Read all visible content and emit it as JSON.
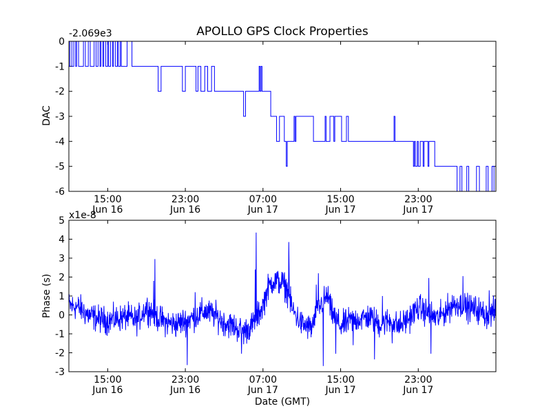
{
  "chart_data": [
    {
      "type": "line",
      "title": "APOLLO GPS Clock Properties",
      "ylabel": "DAC",
      "y_offset_label": "-2.069e3",
      "ylim": [
        -6,
        0
      ],
      "yticks": [
        0,
        -1,
        -2,
        -3,
        -4,
        -5,
        -6
      ],
      "ytick_labels": [
        "0",
        "-1",
        "-2",
        "-3",
        "-4",
        "-5",
        "-6"
      ],
      "x_range_hours": [
        0,
        44
      ],
      "xticks_hours": [
        4,
        12,
        20,
        28,
        36
      ],
      "xtick_labels": [
        {
          "time": "15:00",
          "date": "Jun 16"
        },
        {
          "time": "23:00",
          "date": "Jun 16"
        },
        {
          "time": "07:00",
          "date": "Jun 17"
        },
        {
          "time": "15:00",
          "date": "Jun 17"
        },
        {
          "time": "23:00",
          "date": "Jun 17"
        }
      ],
      "line_color": "#0000ff",
      "series": [
        {
          "name": "DAC",
          "steps": [
            [
              0.0,
              -1
            ],
            [
              0.1,
              0
            ],
            [
              0.3,
              -1
            ],
            [
              0.5,
              0
            ],
            [
              0.7,
              -1
            ],
            [
              0.8,
              0
            ],
            [
              1.0,
              -1
            ],
            [
              1.5,
              0
            ],
            [
              1.7,
              -1
            ],
            [
              2.0,
              0
            ],
            [
              2.2,
              -1
            ],
            [
              2.6,
              0
            ],
            [
              2.8,
              -1
            ],
            [
              3.0,
              0
            ],
            [
              3.2,
              -1
            ],
            [
              3.3,
              0
            ],
            [
              3.5,
              -1
            ],
            [
              3.6,
              0
            ],
            [
              3.8,
              -1
            ],
            [
              4.0,
              0
            ],
            [
              4.1,
              -1
            ],
            [
              4.3,
              0
            ],
            [
              4.5,
              -1
            ],
            [
              4.6,
              0
            ],
            [
              4.8,
              -1
            ],
            [
              5.0,
              0
            ],
            [
              5.1,
              -1
            ],
            [
              5.3,
              0
            ],
            [
              5.4,
              -1
            ],
            [
              6.0,
              0
            ],
            [
              6.5,
              -1
            ],
            [
              9.0,
              -1
            ],
            [
              9.2,
              -2
            ],
            [
              9.5,
              -1
            ],
            [
              11.5,
              -1
            ],
            [
              11.7,
              -2
            ],
            [
              12.0,
              -1
            ],
            [
              13.0,
              -1
            ],
            [
              13.1,
              -2
            ],
            [
              13.3,
              -1
            ],
            [
              13.5,
              -1
            ],
            [
              13.6,
              -2
            ],
            [
              14.0,
              -1
            ],
            [
              14.3,
              -2
            ],
            [
              14.7,
              -1
            ],
            [
              15.0,
              -2
            ],
            [
              17.8,
              -2
            ],
            [
              18.0,
              -3
            ],
            [
              18.2,
              -2
            ],
            [
              19.6,
              -1
            ],
            [
              19.7,
              -2
            ],
            [
              19.8,
              -1
            ],
            [
              19.9,
              -2
            ],
            [
              20.8,
              -3
            ],
            [
              21.4,
              -4
            ],
            [
              21.7,
              -3
            ],
            [
              22.2,
              -4
            ],
            [
              22.4,
              -5
            ],
            [
              22.5,
              -4
            ],
            [
              23.2,
              -3
            ],
            [
              23.3,
              -4
            ],
            [
              23.4,
              -3
            ],
            [
              25.2,
              -4
            ],
            [
              26.4,
              -3
            ],
            [
              26.5,
              -4
            ],
            [
              26.9,
              -3
            ],
            [
              27.3,
              -4
            ],
            [
              27.4,
              -3
            ],
            [
              28.0,
              -3
            ],
            [
              28.1,
              -4
            ],
            [
              28.4,
              -4
            ],
            [
              28.6,
              -3
            ],
            [
              28.8,
              -4
            ],
            [
              33.5,
              -3
            ],
            [
              33.6,
              -4
            ],
            [
              35.5,
              -5
            ],
            [
              35.6,
              -4
            ],
            [
              35.7,
              -5
            ],
            [
              35.9,
              -4
            ],
            [
              36.0,
              -5
            ],
            [
              36.2,
              -4
            ],
            [
              36.5,
              -5
            ],
            [
              36.6,
              -4
            ],
            [
              37.0,
              -5
            ],
            [
              37.1,
              -4
            ],
            [
              37.5,
              -4
            ],
            [
              37.7,
              -5
            ],
            [
              40.0,
              -6
            ],
            [
              40.3,
              -5
            ],
            [
              40.5,
              -6
            ],
            [
              41.0,
              -5
            ],
            [
              41.2,
              -6
            ],
            [
              42.0,
              -5
            ],
            [
              42.3,
              -6
            ],
            [
              43.0,
              -5
            ],
            [
              43.2,
              -6
            ],
            [
              43.6,
              -5
            ],
            [
              43.8,
              -6
            ],
            [
              44.0,
              -6
            ]
          ]
        }
      ]
    },
    {
      "type": "line",
      "xlabel": "Date (GMT)",
      "ylabel": "Phase (s)",
      "y_offset_label": "x1e-8",
      "ylim": [
        -3,
        5
      ],
      "yticks": [
        5,
        4,
        3,
        2,
        1,
        0,
        -1,
        -2,
        -3
      ],
      "ytick_labels": [
        "5",
        "4",
        "3",
        "2",
        "1",
        "0",
        "-1",
        "-2",
        "-3"
      ],
      "x_range_hours": [
        0,
        44
      ],
      "xticks_hours": [
        4,
        12,
        20,
        28,
        36
      ],
      "xtick_labels": [
        {
          "time": "15:00",
          "date": "Jun 16"
        },
        {
          "time": "23:00",
          "date": "Jun 16"
        },
        {
          "time": "07:00",
          "date": "Jun 17"
        },
        {
          "time": "15:00",
          "date": "Jun 17"
        },
        {
          "time": "23:00",
          "date": "Jun 17"
        }
      ],
      "line_color": "#0000ff",
      "series": [
        {
          "name": "Phase",
          "baseline": [
            [
              0.0,
              0.5
            ],
            [
              1.0,
              0.4
            ],
            [
              2.0,
              0.0
            ],
            [
              3.0,
              -0.2
            ],
            [
              4.0,
              -0.3
            ],
            [
              5.0,
              -0.2
            ],
            [
              6.0,
              -0.1
            ],
            [
              7.0,
              -0.3
            ],
            [
              8.0,
              0.4
            ],
            [
              9.0,
              -0.1
            ],
            [
              10.0,
              -0.4
            ],
            [
              11.0,
              -0.5
            ],
            [
              12.0,
              -0.3
            ],
            [
              13.0,
              -0.1
            ],
            [
              14.0,
              0.2
            ],
            [
              15.0,
              0.0
            ],
            [
              16.0,
              -0.4
            ],
            [
              17.0,
              -0.6
            ],
            [
              18.0,
              -0.9
            ],
            [
              19.0,
              -0.5
            ],
            [
              20.0,
              0.5
            ],
            [
              20.5,
              1.4
            ],
            [
              21.0,
              1.8
            ],
            [
              22.0,
              1.7
            ],
            [
              22.5,
              1.3
            ],
            [
              23.0,
              0.3
            ],
            [
              24.0,
              -0.5
            ],
            [
              25.0,
              -0.7
            ],
            [
              26.0,
              0.6
            ],
            [
              26.7,
              1.0
            ],
            [
              27.0,
              0.2
            ],
            [
              28.0,
              -0.6
            ],
            [
              29.0,
              -0.3
            ],
            [
              30.0,
              -0.2
            ],
            [
              31.0,
              -0.1
            ],
            [
              32.0,
              -0.5
            ],
            [
              33.0,
              -0.3
            ],
            [
              34.0,
              -0.6
            ],
            [
              35.0,
              -0.2
            ],
            [
              36.0,
              0.4
            ],
            [
              37.0,
              0.1
            ],
            [
              38.0,
              -0.2
            ],
            [
              39.0,
              0.3
            ],
            [
              40.0,
              0.6
            ],
            [
              41.0,
              0.4
            ],
            [
              42.0,
              0.3
            ],
            [
              43.0,
              0.0
            ],
            [
              44.0,
              0.2
            ]
          ],
          "spikes": [
            [
              8.85,
              2.95
            ],
            [
              8.75,
              1.8
            ],
            [
              12.2,
              -2.65
            ],
            [
              13.0,
              1.2
            ],
            [
              17.8,
              -2.05
            ],
            [
              19.3,
              4.35
            ],
            [
              19.2,
              2.4
            ],
            [
              22.65,
              3.85
            ],
            [
              22.7,
              2.6
            ],
            [
              25.7,
              2.2
            ],
            [
              25.5,
              1.6
            ],
            [
              26.2,
              -2.7
            ],
            [
              27.5,
              -2.05
            ],
            [
              29.3,
              -1.6
            ],
            [
              31.5,
              -2.35
            ],
            [
              32.3,
              1.0
            ],
            [
              33.3,
              -1.5
            ],
            [
              37.1,
              1.95
            ],
            [
              37.3,
              -2.05
            ],
            [
              39.5,
              1.05
            ],
            [
              40.6,
              2.05
            ],
            [
              43.3,
              1.3
            ]
          ],
          "noise_amplitude": 0.35
        }
      ]
    }
  ]
}
